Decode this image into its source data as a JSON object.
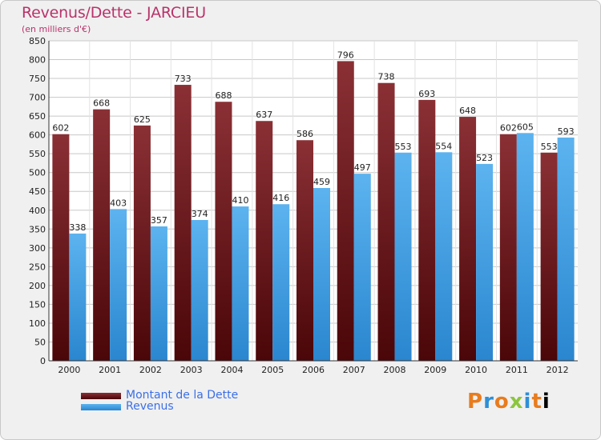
{
  "chart_data": {
    "type": "bar",
    "title": "Revenus/Dette - JARCIEU",
    "subtitle": "(en milliers d'€)",
    "categories": [
      "2000",
      "2001",
      "2002",
      "2003",
      "2004",
      "2005",
      "2006",
      "2007",
      "2008",
      "2009",
      "2010",
      "2011",
      "2012"
    ],
    "series": [
      {
        "name": "Montant de la Dette",
        "color": "#7a1f24",
        "values": [
          602,
          668,
          625,
          733,
          688,
          637,
          586,
          796,
          738,
          693,
          648,
          602,
          553
        ]
      },
      {
        "name": "Revenus",
        "color": "#3fa0e6",
        "values": [
          338,
          403,
          357,
          374,
          410,
          416,
          459,
          497,
          553,
          554,
          523,
          605,
          593
        ]
      }
    ],
    "ylim": [
      0,
      850
    ],
    "ytick_step": 50,
    "grid": true,
    "legend_position": "bottom-left"
  },
  "brand": {
    "logo_text": "Proxiti"
  }
}
